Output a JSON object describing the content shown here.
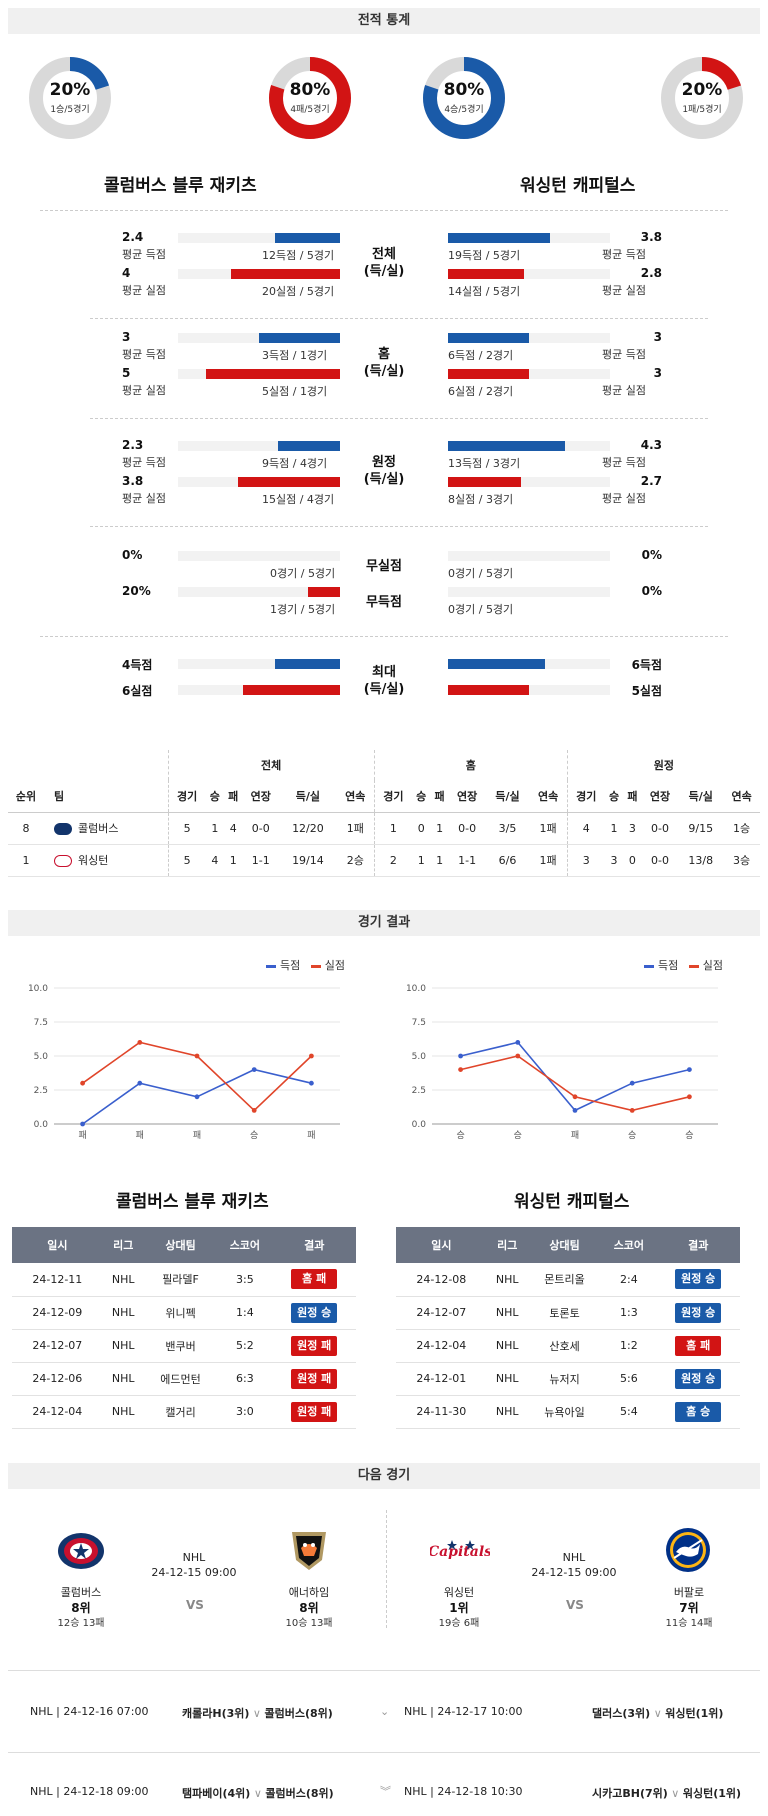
{
  "sections": {
    "stats": "전적 통계",
    "results": "경기 결과",
    "next": "다음 경기"
  },
  "teams": {
    "home": {
      "name": "콜럼버스 블루 재키츠",
      "short": "콜럼버스"
    },
    "away": {
      "name": "워싱턴 캐피털스",
      "short": "워싱턴"
    }
  },
  "donuts": [
    {
      "pct": "20%",
      "rec": "1승/5경기",
      "fraction": 0.2,
      "color": "#1a5aa8"
    },
    {
      "pct": "80%",
      "rec": "4패/5경기",
      "fraction": 0.8,
      "color": "#d21414"
    },
    {
      "pct": "80%",
      "rec": "4승/5경기",
      "fraction": 0.8,
      "color": "#1a5aa8"
    },
    {
      "pct": "20%",
      "rec": "1패/5경기",
      "fraction": 0.2,
      "color": "#d21414"
    }
  ],
  "stat_groups": [
    {
      "label1": "전체",
      "label2": "(득/실)",
      "left": [
        {
          "val": "2.4",
          "sub": "평균 득점",
          "detail": "12득점 / 5경기",
          "fraction": 0.4,
          "color": "blue"
        },
        {
          "val": "4",
          "sub": "평균 실점",
          "detail": "20실점 / 5경기",
          "fraction": 0.67,
          "color": "red"
        }
      ],
      "right": [
        {
          "val": "3.8",
          "sub": "평균 득점",
          "detail": "19득점 / 5경기",
          "fraction": 0.63,
          "color": "blue"
        },
        {
          "val": "2.8",
          "sub": "평균 실점",
          "detail": "14실점 / 5경기",
          "fraction": 0.47,
          "color": "red"
        }
      ]
    },
    {
      "label1": "홈",
      "label2": "(득/실)",
      "left": [
        {
          "val": "3",
          "sub": "평균 득점",
          "detail": "3득점 / 1경기",
          "fraction": 0.5,
          "color": "blue"
        },
        {
          "val": "5",
          "sub": "평균 실점",
          "detail": "5실점 / 1경기",
          "fraction": 0.83,
          "color": "red"
        }
      ],
      "right": [
        {
          "val": "3",
          "sub": "평균 득점",
          "detail": "6득점 / 2경기",
          "fraction": 0.5,
          "color": "blue"
        },
        {
          "val": "3",
          "sub": "평균 실점",
          "detail": "6실점 / 2경기",
          "fraction": 0.5,
          "color": "red"
        }
      ]
    },
    {
      "label1": "원정",
      "label2": "(득/실)",
      "left": [
        {
          "val": "2.3",
          "sub": "평균 득점",
          "detail": "9득점 / 4경기",
          "fraction": 0.38,
          "color": "blue"
        },
        {
          "val": "3.8",
          "sub": "평균 실점",
          "detail": "15실점 / 4경기",
          "fraction": 0.63,
          "color": "red"
        }
      ],
      "right": [
        {
          "val": "4.3",
          "sub": "평균 득점",
          "detail": "13득점 / 3경기",
          "fraction": 0.72,
          "color": "blue"
        },
        {
          "val": "2.7",
          "sub": "평균 실점",
          "detail": "8실점 / 3경기",
          "fraction": 0.45,
          "color": "red"
        }
      ]
    }
  ],
  "zero_groups": [
    {
      "label": "무실점",
      "left_val": "0%",
      "left_detail": "0경기 / 5경기",
      "left_fraction": 0,
      "right_val": "0%",
      "right_detail": "0경기 / 5경기",
      "right_fraction": 0
    },
    {
      "label": "무득점",
      "left_val": "20%",
      "left_detail": "1경기 / 5경기",
      "left_fraction": 0.2,
      "right_val": "0%",
      "right_detail": "0경기 / 5경기",
      "right_fraction": 0
    }
  ],
  "max_group": {
    "label1": "최대",
    "label2": "(득/실)",
    "left": [
      {
        "val": "4득점",
        "fraction": 0.4,
        "color": "blue"
      },
      {
        "val": "6실점",
        "fraction": 0.6,
        "color": "red"
      }
    ],
    "right": [
      {
        "val": "6득점",
        "fraction": 0.6,
        "color": "blue"
      },
      {
        "val": "5실점",
        "fraction": 0.5,
        "color": "red"
      }
    ]
  },
  "standings": {
    "groups": [
      "전체",
      "홈",
      "원정"
    ],
    "cols_left": [
      "순위",
      "팀"
    ],
    "cols": [
      "경기",
      "승",
      "패",
      "연장",
      "득/실",
      "연속"
    ],
    "rows": [
      {
        "rank": "8",
        "team": "콜럼버스",
        "all": [
          "5",
          "1",
          "4",
          "0-0",
          "12/20",
          "1패"
        ],
        "home": [
          "1",
          "0",
          "1",
          "0-0",
          "3/5",
          "1패"
        ],
        "away": [
          "4",
          "1",
          "3",
          "0-0",
          "9/15",
          "1승"
        ]
      },
      {
        "rank": "1",
        "team": "워싱턴",
        "all": [
          "5",
          "4",
          "1",
          "1-1",
          "19/14",
          "2승"
        ],
        "home": [
          "2",
          "1",
          "1",
          "1-1",
          "6/6",
          "1패"
        ],
        "away": [
          "3",
          "3",
          "0",
          "0-0",
          "13/8",
          "3승"
        ]
      }
    ]
  },
  "chart_data": [
    {
      "type": "line",
      "categories": [
        "패",
        "패",
        "패",
        "승",
        "패"
      ],
      "series": [
        {
          "name": "득점",
          "values": [
            0,
            3,
            2,
            4,
            3
          ],
          "color": "#3a5fcd"
        },
        {
          "name": "실점",
          "values": [
            3,
            6,
            5,
            1,
            5
          ],
          "color": "#e0452a"
        }
      ],
      "yticks": [
        "0.0",
        "2.5",
        "5.0",
        "7.5",
        "10.0"
      ],
      "ylim": [
        0,
        10
      ]
    },
    {
      "type": "line",
      "categories": [
        "승",
        "승",
        "패",
        "승",
        "승"
      ],
      "series": [
        {
          "name": "득점",
          "values": [
            5,
            6,
            1,
            3,
            4
          ],
          "color": "#3a5fcd"
        },
        {
          "name": "실점",
          "values": [
            4,
            5,
            2,
            1,
            2
          ],
          "color": "#e0452a"
        }
      ],
      "yticks": [
        "0.0",
        "2.5",
        "5.0",
        "7.5",
        "10.0"
      ],
      "ylim": [
        0,
        10
      ]
    }
  ],
  "results": {
    "headers": [
      "일시",
      "리그",
      "상대팀",
      "스코어",
      "결과"
    ],
    "home": [
      {
        "date": "24-12-11",
        "league": "NHL",
        "opp": "필라델F",
        "score": "3:5",
        "result": "홈 패",
        "win": false
      },
      {
        "date": "24-12-09",
        "league": "NHL",
        "opp": "위니펙",
        "score": "1:4",
        "result": "원정 승",
        "win": true
      },
      {
        "date": "24-12-07",
        "league": "NHL",
        "opp": "밴쿠버",
        "score": "5:2",
        "result": "원정 패",
        "win": false
      },
      {
        "date": "24-12-06",
        "league": "NHL",
        "opp": "에드먼턴",
        "score": "6:3",
        "result": "원정 패",
        "win": false
      },
      {
        "date": "24-12-04",
        "league": "NHL",
        "opp": "캘거리",
        "score": "3:0",
        "result": "원정 패",
        "win": false
      }
    ],
    "away": [
      {
        "date": "24-12-08",
        "league": "NHL",
        "opp": "몬트리올",
        "score": "2:4",
        "result": "원정 승",
        "win": true
      },
      {
        "date": "24-12-07",
        "league": "NHL",
        "opp": "토론토",
        "score": "1:3",
        "result": "원정 승",
        "win": true
      },
      {
        "date": "24-12-04",
        "league": "NHL",
        "opp": "산호세",
        "score": "1:2",
        "result": "홈 패",
        "win": false
      },
      {
        "date": "24-12-01",
        "league": "NHL",
        "opp": "뉴저지",
        "score": "5:6",
        "result": "원정 승",
        "win": true
      },
      {
        "date": "24-11-30",
        "league": "NHL",
        "opp": "뉴욕아일",
        "score": "5:4",
        "result": "홈 승",
        "win": true
      }
    ]
  },
  "next_games": [
    {
      "league": "NHL",
      "datetime": "24-12-15 09:00",
      "vs": "VS",
      "t1": {
        "name": "콜럼버스",
        "rank": "8위",
        "rec": "12승 13패"
      },
      "t2": {
        "name": "애너하임",
        "rank": "8위",
        "rec": "10승 13패"
      }
    },
    {
      "league": "NHL",
      "datetime": "24-12-15 09:00",
      "vs": "VS",
      "t1": {
        "name": "워싱턴",
        "rank": "1위",
        "rec": "19승 6패"
      },
      "t2": {
        "name": "버팔로",
        "rank": "7위",
        "rec": "11승 14패"
      }
    }
  ],
  "upcoming": [
    {
      "info": "NHL | 24-12-16 07:00",
      "t1": "캐롤라H(3위)",
      "t2": "콜럼버스(8위)"
    },
    {
      "info": "NHL | 24-12-17 10:00",
      "t1": "댈러스(3위)",
      "t2": "워싱턴(1위)"
    },
    {
      "info": "NHL | 24-12-18 09:00",
      "t1": "탬파베이(4위)",
      "t2": "콜럼버스(8위)"
    },
    {
      "info": "NHL | 24-12-18 10:30",
      "t1": "시카고BH(7위)",
      "t2": "워싱턴(1위)"
    }
  ],
  "logo_text": {
    "capitals": "Capitals"
  }
}
